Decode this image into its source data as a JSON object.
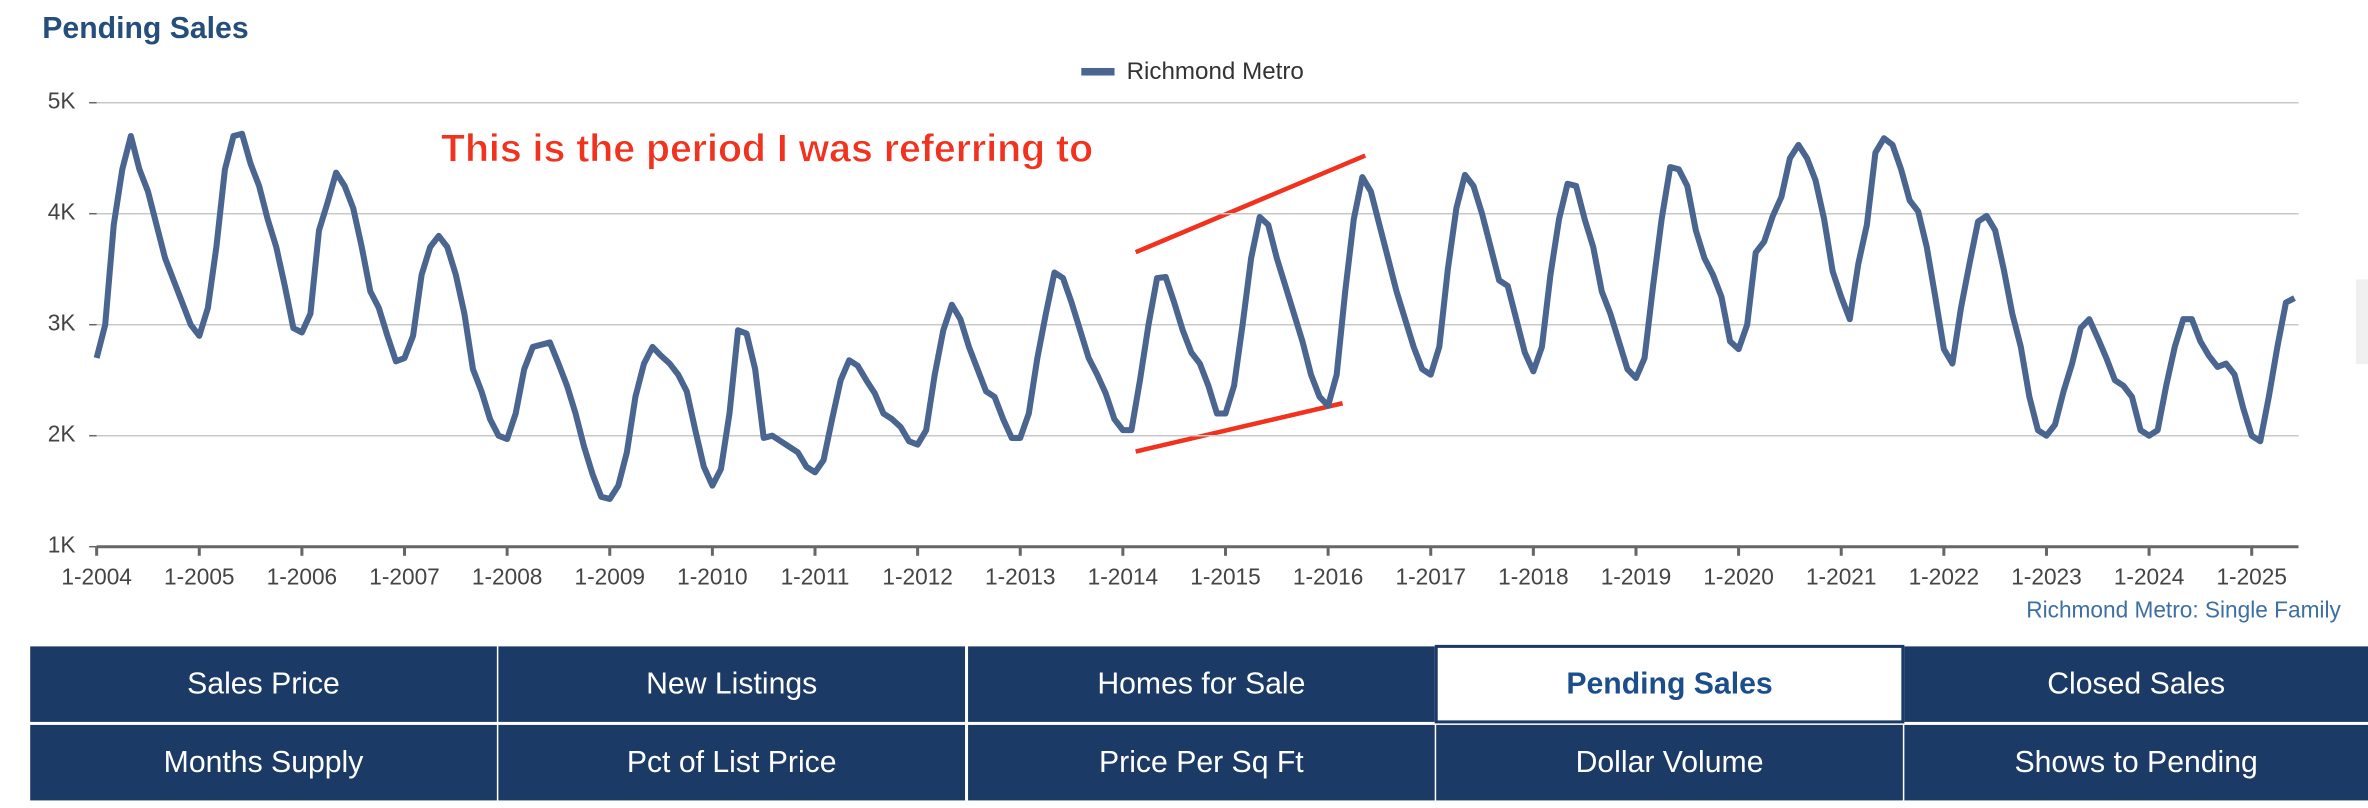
{
  "chart_data": {
    "type": "line",
    "title": "Pending Sales",
    "annotation": "This is the period I was referring to",
    "source": "Richmond Metro: Single Family",
    "x": [
      "1-2004",
      "2-2004",
      "3-2004",
      "4-2004",
      "5-2004",
      "6-2004",
      "7-2004",
      "8-2004",
      "9-2004",
      "10-2004",
      "11-2004",
      "12-2004",
      "1-2005",
      "2-2005",
      "3-2005",
      "4-2005",
      "5-2005",
      "6-2005",
      "7-2005",
      "8-2005",
      "9-2005",
      "10-2005",
      "11-2005",
      "12-2005",
      "1-2006",
      "2-2006",
      "3-2006",
      "4-2006",
      "5-2006",
      "6-2006",
      "7-2006",
      "8-2006",
      "9-2006",
      "10-2006",
      "11-2006",
      "12-2006",
      "1-2007",
      "2-2007",
      "3-2007",
      "4-2007",
      "5-2007",
      "6-2007",
      "7-2007",
      "8-2007",
      "9-2007",
      "10-2007",
      "11-2007",
      "12-2007",
      "1-2008",
      "2-2008",
      "3-2008",
      "4-2008",
      "5-2008",
      "6-2008",
      "7-2008",
      "8-2008",
      "9-2008",
      "10-2008",
      "11-2008",
      "12-2008",
      "1-2009",
      "2-2009",
      "3-2009",
      "4-2009",
      "5-2009",
      "6-2009",
      "7-2009",
      "8-2009",
      "9-2009",
      "10-2009",
      "11-2009",
      "12-2009",
      "1-2010",
      "2-2010",
      "3-2010",
      "4-2010",
      "5-2010",
      "6-2010",
      "7-2010",
      "8-2010",
      "9-2010",
      "10-2010",
      "11-2010",
      "12-2010",
      "1-2011",
      "2-2011",
      "3-2011",
      "4-2011",
      "5-2011",
      "6-2011",
      "7-2011",
      "8-2011",
      "9-2011",
      "10-2011",
      "11-2011",
      "12-2011",
      "1-2012",
      "2-2012",
      "3-2012",
      "4-2012",
      "5-2012",
      "6-2012",
      "7-2012",
      "8-2012",
      "9-2012",
      "10-2012",
      "11-2012",
      "12-2012",
      "1-2013",
      "2-2013",
      "3-2013",
      "4-2013",
      "5-2013",
      "6-2013",
      "7-2013",
      "8-2013",
      "9-2013",
      "10-2013",
      "11-2013",
      "12-2013",
      "1-2014",
      "2-2014",
      "3-2014",
      "4-2014",
      "5-2014",
      "6-2014",
      "7-2014",
      "8-2014",
      "9-2014",
      "10-2014",
      "11-2014",
      "12-2014",
      "1-2015",
      "2-2015",
      "3-2015",
      "4-2015",
      "5-2015",
      "6-2015",
      "7-2015",
      "8-2015",
      "9-2015",
      "10-2015",
      "11-2015",
      "12-2015",
      "1-2016",
      "2-2016",
      "3-2016",
      "4-2016",
      "5-2016",
      "6-2016",
      "7-2016",
      "8-2016",
      "9-2016",
      "10-2016",
      "11-2016",
      "12-2016",
      "1-2017",
      "2-2017",
      "3-2017",
      "4-2017",
      "5-2017",
      "6-2017",
      "7-2017",
      "8-2017",
      "9-2017",
      "10-2017",
      "11-2017",
      "12-2017",
      "1-2018",
      "2-2018",
      "3-2018",
      "4-2018",
      "5-2018",
      "6-2018",
      "7-2018",
      "8-2018",
      "9-2018",
      "10-2018",
      "11-2018",
      "12-2018",
      "1-2019",
      "2-2019",
      "3-2019",
      "4-2019",
      "5-2019",
      "6-2019",
      "7-2019",
      "8-2019",
      "9-2019",
      "10-2019",
      "11-2019",
      "12-2019",
      "1-2020",
      "2-2020",
      "3-2020",
      "4-2020",
      "5-2020",
      "6-2020",
      "7-2020",
      "8-2020",
      "9-2020",
      "10-2020",
      "11-2020",
      "12-2020",
      "1-2021",
      "2-2021",
      "3-2021",
      "4-2021",
      "5-2021",
      "6-2021",
      "7-2021",
      "8-2021",
      "9-2021",
      "10-2021",
      "11-2021",
      "12-2021",
      "1-2022",
      "2-2022",
      "3-2022",
      "4-2022",
      "5-2022",
      "6-2022",
      "7-2022",
      "8-2022",
      "9-2022",
      "10-2022",
      "11-2022",
      "12-2022",
      "1-2023",
      "2-2023",
      "3-2023",
      "4-2023",
      "5-2023",
      "6-2023",
      "7-2023",
      "8-2023",
      "9-2023",
      "10-2023",
      "11-2023",
      "12-2023",
      "1-2024",
      "2-2024",
      "3-2024",
      "4-2024",
      "5-2024",
      "6-2024",
      "7-2024",
      "8-2024",
      "9-2024",
      "10-2024",
      "11-2024",
      "12-2024",
      "1-2025",
      "2-2025",
      "3-2025",
      "4-2025",
      "5-2025",
      "6-2025"
    ],
    "series": [
      {
        "name": "Richmond Metro",
        "color": "#4a6590",
        "values": [
          2700,
          3000,
          3900,
          4400,
          4700,
          4400,
          4200,
          3900,
          3600,
          3400,
          3200,
          3000,
          2900,
          3150,
          3700,
          4400,
          4700,
          4720,
          4450,
          4250,
          3950,
          3700,
          3350,
          2970,
          2930,
          3100,
          3850,
          4100,
          4370,
          4250,
          4050,
          3700,
          3300,
          3150,
          2900,
          2670,
          2700,
          2900,
          3450,
          3700,
          3800,
          3700,
          3450,
          3100,
          2600,
          2400,
          2150,
          2000,
          1970,
          2200,
          2600,
          2800,
          2820,
          2840,
          2650,
          2450,
          2200,
          1900,
          1650,
          1450,
          1430,
          1550,
          1850,
          2350,
          2650,
          2800,
          2720,
          2650,
          2550,
          2400,
          2050,
          1720,
          1550,
          1700,
          2200,
          2950,
          2920,
          2600,
          1980,
          2000,
          1950,
          1900,
          1850,
          1720,
          1670,
          1780,
          2150,
          2500,
          2680,
          2630,
          2500,
          2380,
          2200,
          2150,
          2080,
          1950,
          1920,
          2050,
          2550,
          2950,
          3180,
          3050,
          2800,
          2600,
          2400,
          2350,
          2150,
          1980,
          1980,
          2200,
          2700,
          3100,
          3470,
          3420,
          3200,
          2950,
          2700,
          2550,
          2380,
          2150,
          2050,
          2050,
          2500,
          3000,
          3420,
          3430,
          3200,
          2950,
          2750,
          2650,
          2450,
          2200,
          2200,
          2450,
          3000,
          3600,
          3970,
          3900,
          3600,
          3350,
          3100,
          2850,
          2550,
          2350,
          2270,
          2550,
          3300,
          3950,
          4330,
          4200,
          3900,
          3600,
          3300,
          3050,
          2800,
          2600,
          2550,
          2800,
          3500,
          4050,
          4350,
          4250,
          4000,
          3700,
          3400,
          3350,
          3050,
          2750,
          2580,
          2800,
          3450,
          3950,
          4270,
          4250,
          3950,
          3700,
          3300,
          3100,
          2850,
          2600,
          2520,
          2700,
          3350,
          3950,
          4420,
          4400,
          4250,
          3850,
          3600,
          3450,
          3250,
          2850,
          2780,
          3000,
          3650,
          3750,
          3980,
          4150,
          4500,
          4620,
          4500,
          4300,
          3950,
          3480,
          3250,
          3050,
          3550,
          3900,
          4550,
          4680,
          4620,
          4400,
          4120,
          4020,
          3700,
          3250,
          2780,
          2650,
          3150,
          3550,
          3930,
          3980,
          3850,
          3500,
          3100,
          2800,
          2350,
          2050,
          2000,
          2100,
          2400,
          2650,
          2970,
          3050,
          2880,
          2700,
          2500,
          2450,
          2350,
          2050,
          2000,
          2050,
          2450,
          2800,
          3050,
          3050,
          2850,
          2720,
          2620,
          2650,
          2550,
          2250,
          2000,
          1950,
          2350,
          2800,
          3200,
          3240
        ]
      }
    ],
    "ylim": [
      1000,
      5000
    ],
    "yticks": [
      {
        "value": 1000,
        "label": "1K"
      },
      {
        "value": 2000,
        "label": "2K"
      },
      {
        "value": 3000,
        "label": "3K"
      },
      {
        "value": 4000,
        "label": "4K"
      },
      {
        "value": 5000,
        "label": "5K"
      }
    ],
    "grid": true,
    "legend": "top"
  },
  "tabs": [
    [
      {
        "label": "Sales Price",
        "active": false
      },
      {
        "label": "New Listings",
        "active": false
      },
      {
        "label": "Homes for Sale",
        "active": false
      },
      {
        "label": "Pending Sales",
        "active": true
      },
      {
        "label": "Closed Sales",
        "active": false
      }
    ],
    [
      {
        "label": "Months Supply",
        "active": false
      },
      {
        "label": "Pct of List Price",
        "active": false
      },
      {
        "label": "Price Per Sq Ft",
        "active": false
      },
      {
        "label": "Dollar Volume",
        "active": false
      },
      {
        "label": "Shows to Pending",
        "active": false
      }
    ]
  ]
}
